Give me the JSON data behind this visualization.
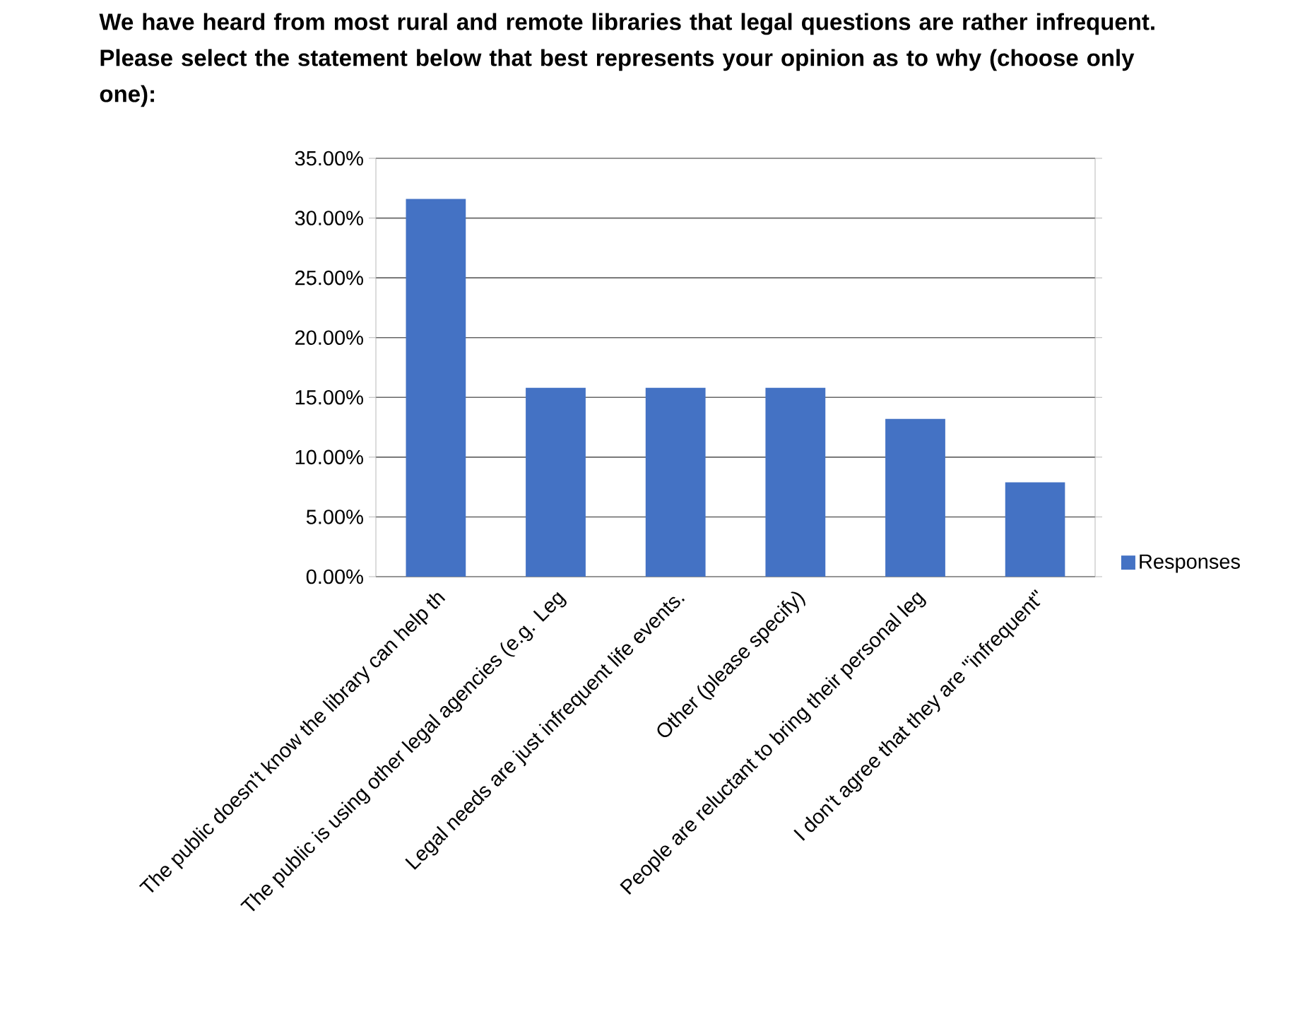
{
  "chart_data": {
    "type": "bar",
    "title": "We have heard from most rural and remote libraries that legal questions are rather infrequent. Please select the statement below that best represents your opinion as to why (choose only one):",
    "categories": [
      "The public doesn't know the library can help th",
      "The public is using other legal agencies (e.g. Leg",
      "Legal needs are just infrequent life events.",
      "Other (please specify)",
      "People are reluctant to bring their personal leg",
      "I don't agree that they are \"infrequent\""
    ],
    "series": [
      {
        "name": "Responses",
        "color": "#4472c4",
        "values": [
          31.6,
          15.8,
          15.8,
          15.8,
          13.2,
          7.9
        ]
      }
    ],
    "ylim": [
      0,
      35
    ],
    "yticks": [
      {
        "value": 0,
        "label": "0.00%"
      },
      {
        "value": 5,
        "label": "5.00%"
      },
      {
        "value": 10,
        "label": "10.00%"
      },
      {
        "value": 15,
        "label": "15.00%"
      },
      {
        "value": 20,
        "label": "20.00%"
      },
      {
        "value": 25,
        "label": "25.00%"
      },
      {
        "value": 30,
        "label": "30.00%"
      },
      {
        "value": 35,
        "label": "35.00%"
      }
    ],
    "grid": "y",
    "legend": "right"
  }
}
